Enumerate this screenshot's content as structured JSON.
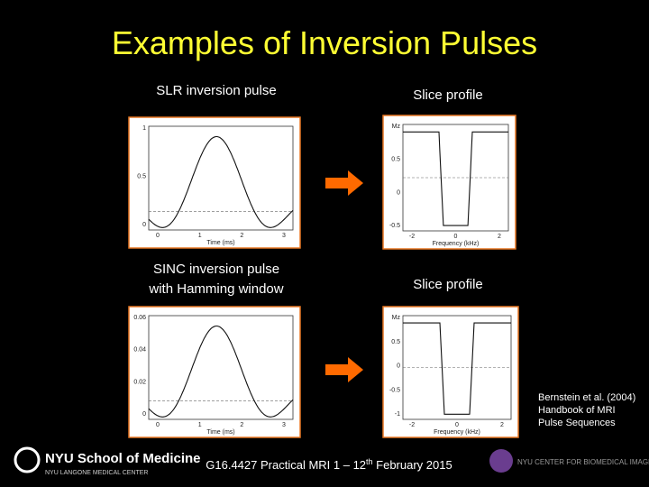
{
  "header": {
    "title": "Examples of Inversion Pulses"
  },
  "panels": [
    {
      "label": [
        "SLR inversion pulse"
      ],
      "kind": "pulse",
      "yticks": [
        "1",
        "0.5",
        "0"
      ],
      "xticks": [
        "0",
        "1",
        "2",
        "3"
      ],
      "xtitle": "Time (ms)"
    },
    {
      "label": [
        "Slice profile"
      ],
      "kind": "profile",
      "yticks": [
        "Mz",
        "0.5",
        "0",
        "-0.5"
      ],
      "xticks": [
        "-2",
        "0",
        "2"
      ],
      "xtitle": "Frequency (kHz)"
    },
    {
      "label": [
        "SINC inversion pulse",
        "with Hamming window"
      ],
      "kind": "pulse",
      "yticks": [
        "0.06",
        "0.04",
        "0.02",
        "0"
      ],
      "xticks": [
        "0",
        "1",
        "2",
        "3"
      ],
      "xtitle": "Time (ms)"
    },
    {
      "label": [
        "Slice profile"
      ],
      "kind": "profile",
      "yticks": [
        "Mz",
        "0.5",
        "0",
        "-0.5",
        "-1"
      ],
      "xticks": [
        "-2",
        "0",
        "2"
      ],
      "xtitle": "Frequency (kHz)"
    }
  ],
  "citation": [
    "Bernstein et al. (2004)",
    "Handbook of MRI",
    "Pulse Sequences"
  ],
  "footer": {
    "course": "G16.4427 Practical MRI 1 – 12",
    "sup": "th",
    "date": " February 2015",
    "logo_left": "NYU School of Medicine",
    "logo_left_sub": "NYU LANGONE MEDICAL CENTER",
    "logo_right": "NYU CENTER FOR BIOMEDICAL IMAGING"
  }
}
